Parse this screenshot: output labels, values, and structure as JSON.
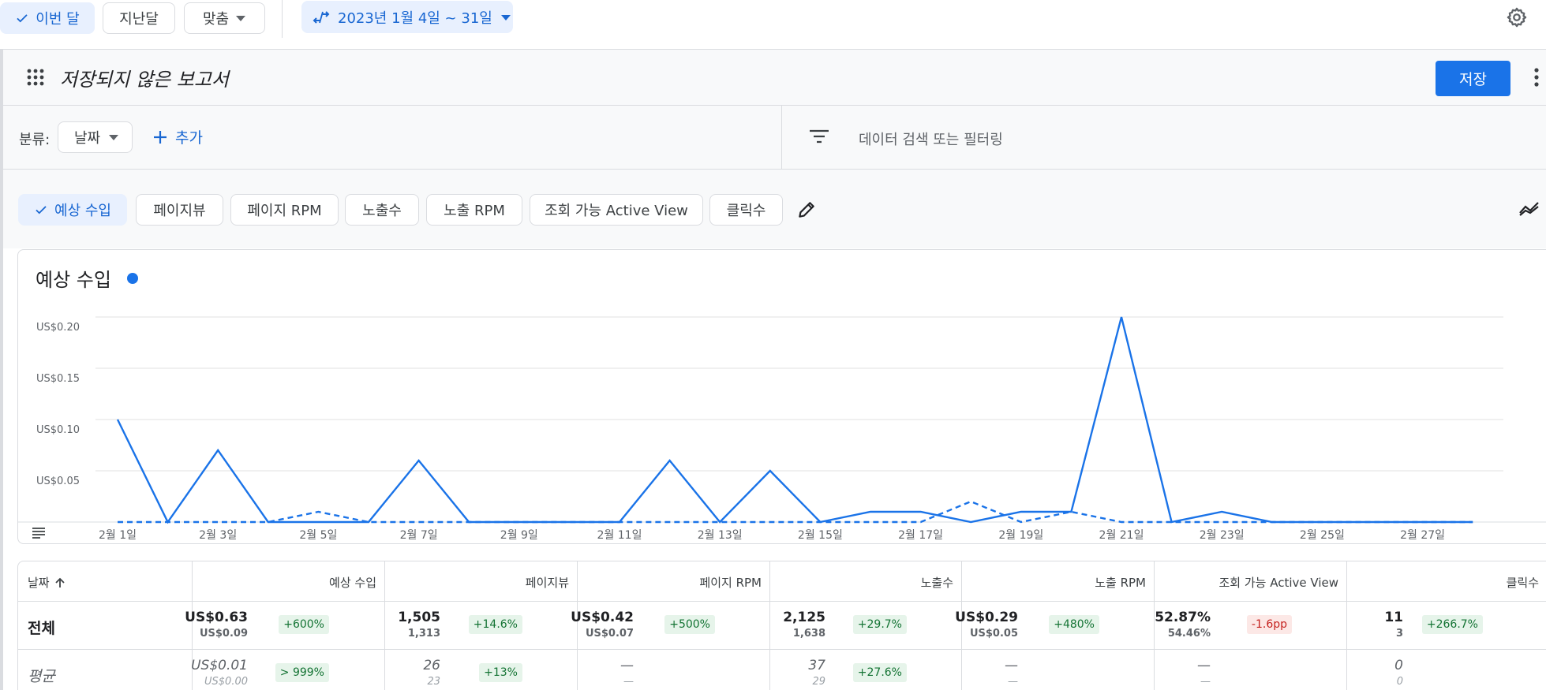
{
  "toolbar": {
    "this_month": "이번 달",
    "last_month": "지난달",
    "custom": "맞춤",
    "date_range": "2023년 1월 4일 ~ 31일",
    "settings_icon": "gear-icon"
  },
  "report": {
    "title": "저장되지 않은 보고서",
    "save_label": "저장"
  },
  "filters": {
    "breakdown_label": "분류:",
    "breakdown_value": "날짜",
    "add_label": "추가",
    "search_placeholder": "데이터 검색 또는 필터링"
  },
  "metric_chips": [
    {
      "label": "예상 수입",
      "selected": true
    },
    {
      "label": "페이지뷰",
      "selected": false
    },
    {
      "label": "페이지 RPM",
      "selected": false
    },
    {
      "label": "노출수",
      "selected": false
    },
    {
      "label": "노출 RPM",
      "selected": false
    },
    {
      "label": "조회 가능 Active View",
      "selected": false
    },
    {
      "label": "클릭수",
      "selected": false
    }
  ],
  "colors": {
    "accent": "#1a73e8",
    "positive_bg": "#e6f4ea",
    "positive_text": "#137333",
    "negative_bg": "#fce8e6",
    "negative_text": "#c5221f"
  },
  "chart_data": {
    "type": "line",
    "title": "예상 수입",
    "x": [
      "2월 1일",
      "2월 2일",
      "2월 3일",
      "2월 4일",
      "2월 5일",
      "2월 6일",
      "2월 7일",
      "2월 8일",
      "2월 9일",
      "2월 10일",
      "2월 11일",
      "2월 12일",
      "2월 13일",
      "2월 14일",
      "2월 15일",
      "2월 16일",
      "2월 17일",
      "2월 18일",
      "2월 19일",
      "2월 20일",
      "2월 21일",
      "2월 22일",
      "2월 23일",
      "2월 24일",
      "2월 25일",
      "2월 26일",
      "2월 27일",
      "2월 28일"
    ],
    "x_tick_labels": [
      "2월 1일",
      "2월 3일",
      "2월 5일",
      "2월 7일",
      "2월 9일",
      "2월 11일",
      "2월 13일",
      "2월 15일",
      "2월 17일",
      "2월 19일",
      "2월 21일",
      "2월 23일",
      "2월 25일",
      "2월 27일"
    ],
    "y_tick_labels": [
      "US$0.20",
      "US$0.15",
      "US$0.10",
      "US$0.05"
    ],
    "ylim": [
      0,
      0.2
    ],
    "grid": true,
    "series": [
      {
        "style": "solid",
        "values": [
          0.1,
          0,
          0.07,
          0,
          0,
          0,
          0.06,
          0,
          0,
          0,
          0,
          0.06,
          0,
          0.05,
          0,
          0.01,
          0.01,
          0,
          0.01,
          0.01,
          0.2,
          0,
          0.01,
          0,
          0,
          0,
          0,
          0
        ]
      },
      {
        "style": "dashed",
        "values": [
          0,
          0,
          0,
          0,
          0.01,
          0,
          0,
          0,
          0,
          0,
          0,
          0,
          0,
          0,
          0,
          0,
          0,
          0.02,
          0,
          0.01,
          0,
          0,
          0,
          0,
          0,
          0,
          0,
          0
        ]
      }
    ]
  },
  "table": {
    "columns": [
      "날짜",
      "예상 수입",
      "페이지뷰",
      "페이지 RPM",
      "노출수",
      "노출 RPM",
      "조회 가능 Active View",
      "클릭수"
    ],
    "total": {
      "label": "전체",
      "cells": [
        {
          "v1": "US$0.63",
          "v2": "US$0.09",
          "badge": "+600%",
          "neg": false
        },
        {
          "v1": "1,505",
          "v2": "1,313",
          "badge": "+14.6%",
          "neg": false
        },
        {
          "v1": "US$0.42",
          "v2": "US$0.07",
          "badge": "+500%",
          "neg": false
        },
        {
          "v1": "2,125",
          "v2": "1,638",
          "badge": "+29.7%",
          "neg": false
        },
        {
          "v1": "US$0.29",
          "v2": "US$0.05",
          "badge": "+480%",
          "neg": false
        },
        {
          "v1": "52.87%",
          "v2": "54.46%",
          "badge": "-1.6pp",
          "neg": true
        },
        {
          "v1": "11",
          "v2": "3",
          "badge": "+266.7%",
          "neg": false
        }
      ]
    },
    "average": {
      "label": "평균",
      "cells": [
        {
          "v1": "US$0.01",
          "v2": "US$0.00",
          "badge": "> 999%",
          "neg": false
        },
        {
          "v1": "26",
          "v2": "23",
          "badge": "+13%",
          "neg": false
        },
        {
          "v1": "—",
          "v2": "—",
          "badge": "",
          "neg": false
        },
        {
          "v1": "37",
          "v2": "29",
          "badge": "+27.6%",
          "neg": false
        },
        {
          "v1": "—",
          "v2": "—",
          "badge": "",
          "neg": false
        },
        {
          "v1": "—",
          "v2": "—",
          "badge": "",
          "neg": false
        },
        {
          "v1": "0",
          "v2": "0",
          "badge": "",
          "neg": false
        }
      ]
    }
  }
}
